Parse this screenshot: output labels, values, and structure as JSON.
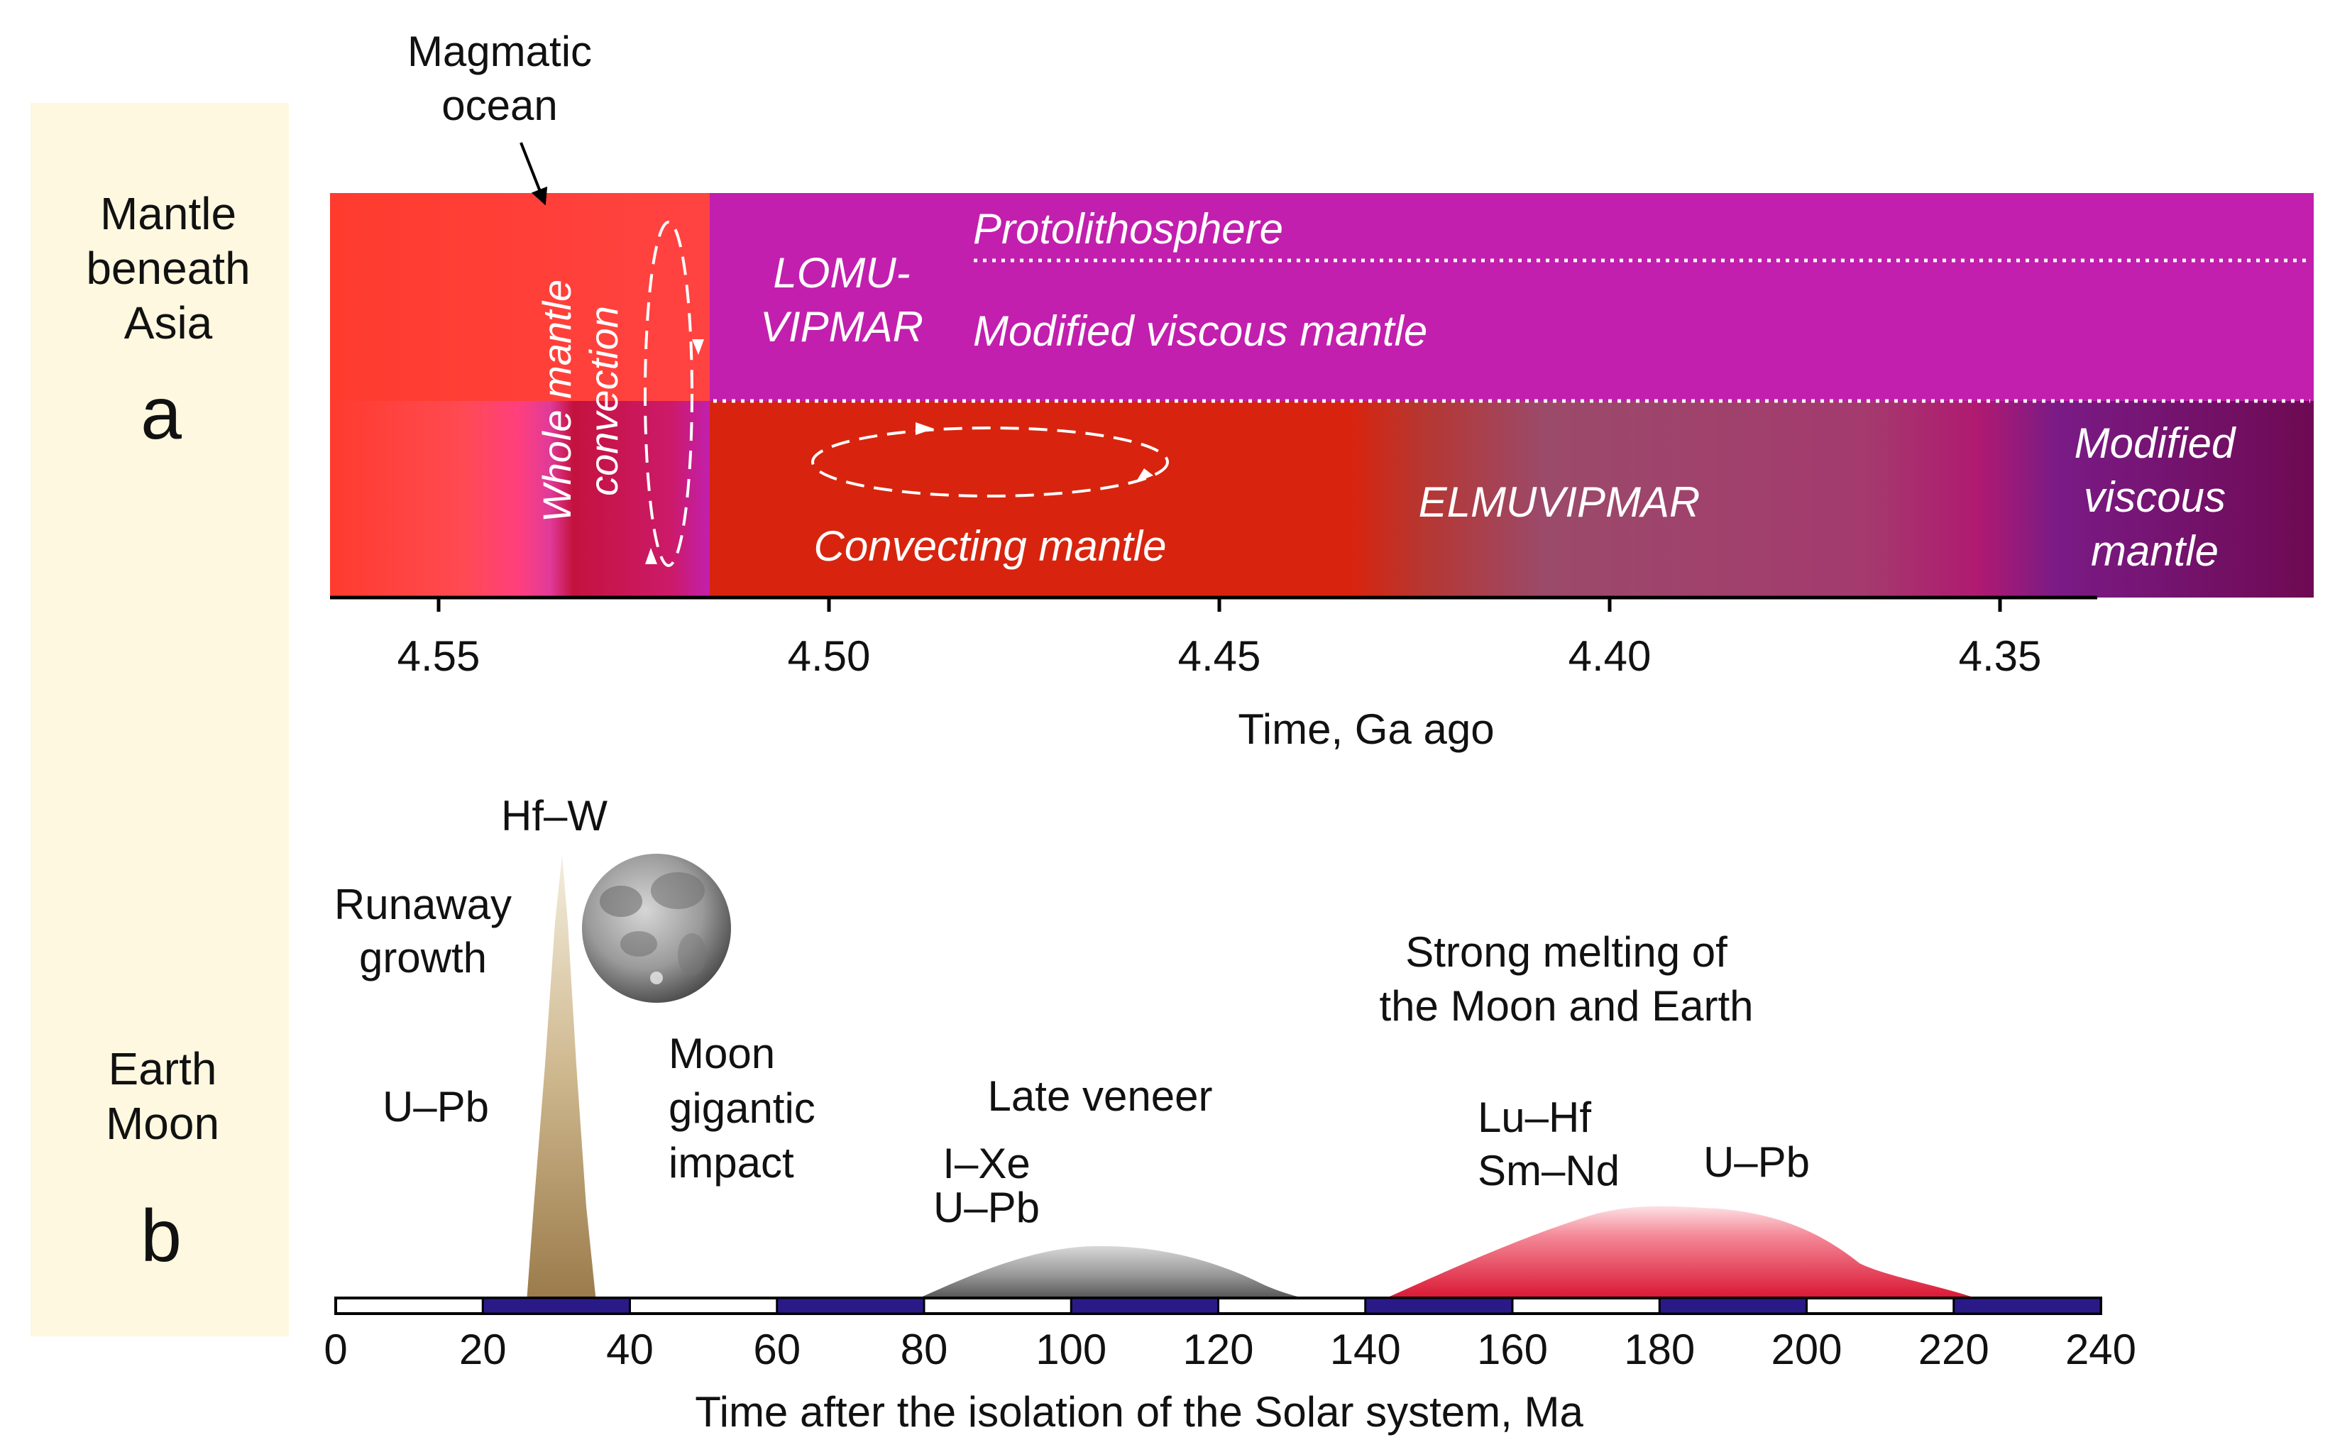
{
  "colors": {
    "side_panel": "#fdf8df",
    "molten_red": "#ff3b2e",
    "magma_pink": "#d92a7a",
    "crimson": "#c4123e",
    "magenta": "#c21fae",
    "convecting_red": "#d8240e",
    "elmuvipmar_grey": "#9b4a6a",
    "deep_purple": "#7a1b86",
    "dark_plum": "#6e0a52",
    "hfw_peak": "#a88a5c",
    "late_veneer": "#777777",
    "strong_melting": "#e0203f",
    "scale_dark": "#2a1a88"
  },
  "panel_a": {
    "side_label": [
      "Mantle",
      "beneath",
      "Asia"
    ],
    "letter": "a",
    "magmatic_ocean": [
      "Magmatic",
      "ocean"
    ],
    "whole_mantle": [
      "Whole mantle",
      "convection"
    ],
    "lomu": [
      "LOMU-",
      "VIPMAR"
    ],
    "protolithosphere": "Protolithosphere",
    "modified_viscous": "Modified viscous mantle",
    "convecting": "Convecting mantle",
    "elmuvipmar": "ELMUVIPMAR",
    "modified_viscous_right": [
      "Modified",
      "viscous",
      "mantle"
    ],
    "axis_title": "Time, Ga ago",
    "ticks": [
      "4.55",
      "4.50",
      "4.45",
      "4.40",
      "4.35"
    ]
  },
  "panel_b": {
    "side_label": [
      "Earth",
      "Moon"
    ],
    "letter": "b",
    "hf_w": "Hf–W",
    "runaway": [
      "Runaway",
      "growth"
    ],
    "upb_left": "U–Pb",
    "moon_impact": [
      "Moon",
      "gigantic",
      "impact"
    ],
    "late_veneer": "Late veneer",
    "ixe": "I–Xe",
    "upb_mid": "U–Pb",
    "strong_melting": [
      "Strong melting of",
      "the Moon and Earth"
    ],
    "luhf": "Lu–Hf",
    "smnd": "Sm–Nd",
    "upb_right": "U–Pb",
    "axis_title": "Time after the isolation of the Solar system, Ma",
    "ticks": [
      "0",
      "20",
      "40",
      "60",
      "80",
      "100",
      "120",
      "140",
      "160",
      "180",
      "200",
      "220",
      "240"
    ]
  }
}
